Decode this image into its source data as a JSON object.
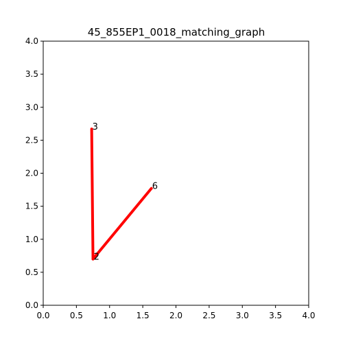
{
  "chart_data": {
    "type": "line",
    "title": "45_855EP1_0018_matching_graph",
    "xlabel": "",
    "ylabel": "",
    "xlim": [
      0,
      4
    ],
    "ylim": [
      0,
      4
    ],
    "x_ticks": [
      "0.0",
      "0.5",
      "1.0",
      "1.5",
      "2.0",
      "2.5",
      "3.0",
      "3.5",
      "4.0"
    ],
    "y_ticks": [
      "0.0",
      "0.5",
      "1.0",
      "1.5",
      "2.0",
      "2.5",
      "3.0",
      "3.5",
      "4.0"
    ],
    "grid": false,
    "nodes": [
      {
        "id": "3",
        "x": 0.73,
        "y": 2.67
      },
      {
        "id": "2",
        "x": 0.75,
        "y": 0.7
      },
      {
        "id": "6",
        "x": 1.63,
        "y": 1.77
      }
    ],
    "edges": [
      {
        "from": "3",
        "to": "2"
      },
      {
        "from": "2",
        "to": "6"
      }
    ],
    "edge_color": "#ff0000"
  }
}
